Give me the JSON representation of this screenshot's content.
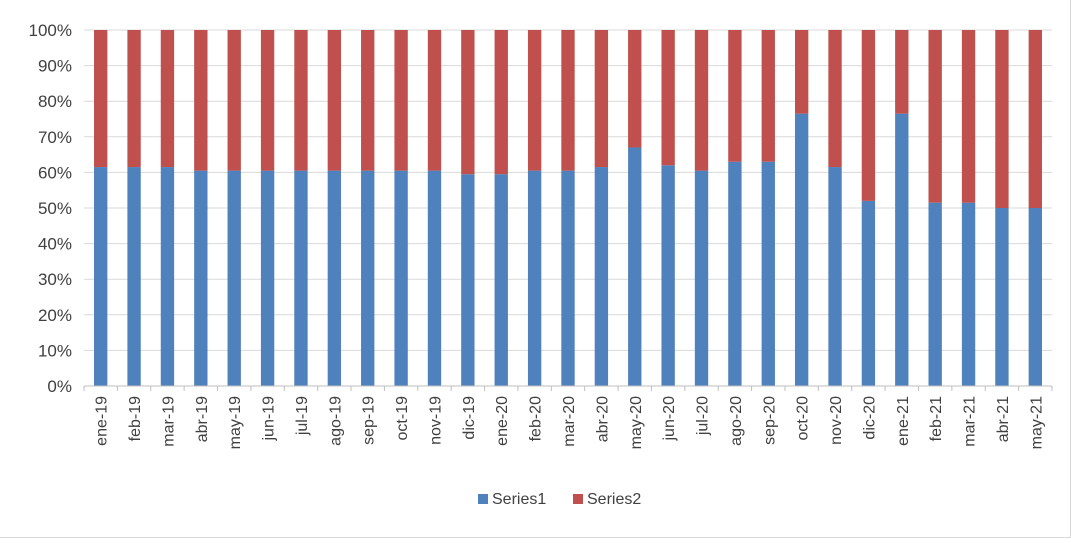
{
  "chart_data": {
    "type": "bar",
    "stacking": "percent",
    "categories": [
      "ene-19",
      "feb-19",
      "mar-19",
      "abr-19",
      "may-19",
      "jun-19",
      "jul-19",
      "ago-19",
      "sep-19",
      "oct-19",
      "nov-19",
      "dic-19",
      "ene-20",
      "feb-20",
      "mar-20",
      "abr-20",
      "may-20",
      "jun-20",
      "jul-20",
      "ago-20",
      "sep-20",
      "oct-20",
      "nov-20",
      "dic-20",
      "ene-21",
      "feb-21",
      "mar-21",
      "abr-21",
      "may-21"
    ],
    "series": [
      {
        "name": "Series1",
        "color": "#4f81bd",
        "values": [
          61.5,
          61.5,
          61.5,
          60.5,
          60.5,
          60.5,
          60.5,
          60.5,
          60.5,
          60.5,
          60.5,
          59.5,
          59.5,
          60.5,
          60.5,
          61.5,
          67,
          62,
          60.5,
          63,
          63,
          76.5,
          61.5,
          52,
          76.5,
          51.5,
          51.5,
          50,
          50
        ]
      },
      {
        "name": "Series2",
        "color": "#c0504d",
        "values": [
          38.5,
          38.5,
          38.5,
          39.5,
          39.5,
          39.5,
          39.5,
          39.5,
          39.5,
          39.5,
          39.5,
          40.5,
          40.5,
          39.5,
          39.5,
          38.5,
          33,
          38,
          39.5,
          37,
          37,
          23.5,
          38.5,
          48,
          23.5,
          48.5,
          48.5,
          50,
          50
        ]
      }
    ],
    "y_ticks": [
      "0%",
      "10%",
      "20%",
      "30%",
      "40%",
      "50%",
      "60%",
      "70%",
      "80%",
      "90%",
      "100%"
    ],
    "ylim": [
      0,
      100
    ],
    "grid": true,
    "legend_position": "bottom"
  }
}
